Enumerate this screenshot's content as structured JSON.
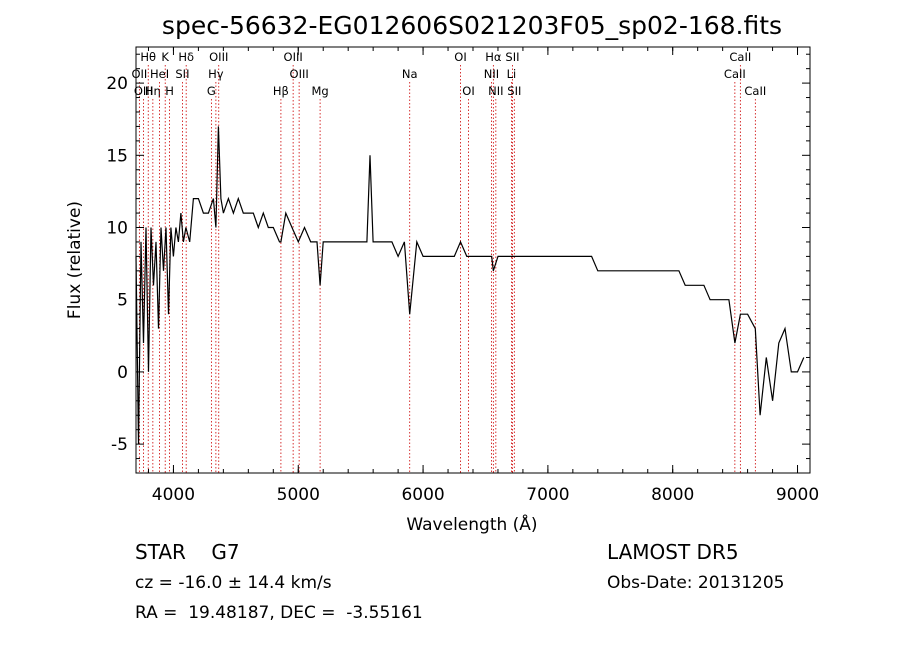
{
  "chart_data": {
    "type": "line",
    "title": "spec-56632-EG012606S021203F05_sp02-168.fits",
    "xlabel": "Wavelength (Å)",
    "ylabel": "Flux (relative)",
    "xlim": [
      3700,
      9100
    ],
    "ylim": [
      -7,
      22.5
    ],
    "xticks": [
      4000,
      5000,
      6000,
      7000,
      8000,
      9000
    ],
    "yticks": [
      -5,
      0,
      5,
      10,
      15,
      20
    ],
    "line_color": "#000000",
    "marker_color": "#cc0000",
    "series": [
      {
        "x": [
          3700,
          3720,
          3740,
          3760,
          3780,
          3800,
          3820,
          3840,
          3860,
          3880,
          3900,
          3920,
          3940,
          3960,
          3980,
          4000,
          4020,
          4040,
          4060,
          4080,
          4100,
          4130,
          4160,
          4200,
          4240,
          4280,
          4320,
          4340,
          4360,
          4380,
          4400,
          4440,
          4480,
          4520,
          4560,
          4600,
          4640,
          4680,
          4720,
          4760,
          4800,
          4850,
          4861,
          4900,
          4950,
          5000,
          5050,
          5100,
          5150,
          5175,
          5200,
          5250,
          5300,
          5350,
          5400,
          5450,
          5500,
          5550,
          5575,
          5600,
          5650,
          5700,
          5750,
          5800,
          5850,
          5893,
          5950,
          6000,
          6050,
          6100,
          6150,
          6200,
          6250,
          6300,
          6350,
          6400,
          6450,
          6500,
          6550,
          6563,
          6600,
          6650,
          6700,
          6750,
          6800,
          6850,
          6900,
          6950,
          7000,
          7050,
          7100,
          7150,
          7200,
          7250,
          7300,
          7350,
          7400,
          7450,
          7500,
          7550,
          7600,
          7650,
          7700,
          7750,
          7800,
          7850,
          7900,
          7950,
          8000,
          8050,
          8100,
          8150,
          8200,
          8250,
          8300,
          8350,
          8400,
          8450,
          8498,
          8542,
          8600,
          8662,
          8700,
          8750,
          8800,
          8850,
          8900,
          8950,
          9000,
          9050
        ],
        "values": [
          8,
          -5,
          9,
          2,
          10,
          0,
          10,
          6,
          9,
          3,
          10,
          7,
          10,
          4,
          10,
          8,
          10,
          9,
          11,
          9,
          10,
          9,
          12,
          12,
          11,
          11,
          12,
          10,
          17,
          12,
          11,
          12,
          11,
          12,
          11,
          11,
          11,
          10,
          11,
          10,
          10,
          9,
          9,
          11,
          10,
          9,
          10,
          9,
          9,
          6,
          9,
          9,
          9,
          9,
          9,
          9,
          9,
          9,
          15,
          9,
          9,
          9,
          9,
          8,
          9,
          4,
          9,
          8,
          8,
          8,
          8,
          8,
          8,
          9,
          8,
          8,
          8,
          8,
          8,
          7,
          8,
          8,
          8,
          8,
          8,
          8,
          8,
          8,
          8,
          8,
          8,
          8,
          8,
          8,
          8,
          8,
          7,
          7,
          7,
          7,
          7,
          7,
          7,
          7,
          7,
          7,
          7,
          7,
          7,
          7,
          6,
          6,
          6,
          6,
          5,
          5,
          5,
          5,
          2,
          4,
          4,
          3,
          -3,
          1,
          -2,
          2,
          3,
          0,
          0,
          1
        ]
      }
    ],
    "lines": [
      {
        "name": "Hθ",
        "wl": 3798,
        "row": 0
      },
      {
        "name": "OII",
        "wl": 3727,
        "row": 1
      },
      {
        "name": "OIII",
        "wl": 3760,
        "row": 2
      },
      {
        "name": "Hη",
        "wl": 3835,
        "row": 2
      },
      {
        "name": "K",
        "wl": 3934,
        "row": 0
      },
      {
        "name": "HeI",
        "wl": 3889,
        "row": 1
      },
      {
        "name": "H",
        "wl": 3969,
        "row": 2
      },
      {
        "name": "Hδ",
        "wl": 4102,
        "row": 0
      },
      {
        "name": "SII",
        "wl": 4072,
        "row": 1
      },
      {
        "name": "OIII",
        "wl": 4363,
        "row": 0
      },
      {
        "name": "Hγ",
        "wl": 4340,
        "row": 1
      },
      {
        "name": "G",
        "wl": 4304,
        "row": 2
      },
      {
        "name": "OIII",
        "wl": 4959,
        "row": 0
      },
      {
        "name": "OIII",
        "wl": 5007,
        "row": 1
      },
      {
        "name": "Hβ",
        "wl": 4861,
        "row": 2
      },
      {
        "name": "Mg",
        "wl": 5175,
        "row": 2
      },
      {
        "name": "Na",
        "wl": 5893,
        "row": 1
      },
      {
        "name": "OI",
        "wl": 6300,
        "row": 0
      },
      {
        "name": "OI",
        "wl": 6364,
        "row": 2
      },
      {
        "name": "Hα",
        "wl": 6563,
        "row": 0
      },
      {
        "name": "NII",
        "wl": 6548,
        "row": 1
      },
      {
        "name": "NII",
        "wl": 6583,
        "row": 2
      },
      {
        "name": "SII",
        "wl": 6716,
        "row": 0
      },
      {
        "name": "Li",
        "wl": 6708,
        "row": 1
      },
      {
        "name": "SII",
        "wl": 6731,
        "row": 2
      },
      {
        "name": "CaII",
        "wl": 8542,
        "row": 0
      },
      {
        "name": "CaII",
        "wl": 8498,
        "row": 1
      },
      {
        "name": "CaII",
        "wl": 8662,
        "row": 2
      }
    ]
  },
  "info": {
    "object": "STAR    G7",
    "survey": "LAMOST DR5",
    "cz": "cz = -16.0 ± 14.4 km/s",
    "obs_date": "Obs-Date: 20131205",
    "radec": "RA =  19.48187, DEC =  -3.55161"
  }
}
